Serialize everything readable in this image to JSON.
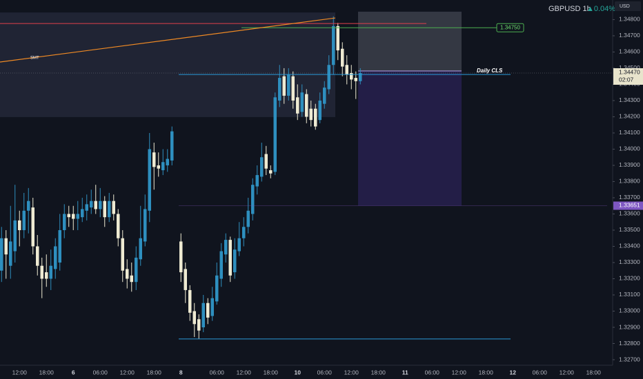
{
  "chart_data": {
    "type": "candlestick",
    "symbol": "GBPUSD",
    "interval": "1h",
    "change": "▲0.04%",
    "currency": "USD",
    "up_color": "#2e8fbf",
    "down_color": "#eeead2",
    "ylim": [
      1.32666,
      1.34921
    ],
    "yticks": [
      {
        "value": 1.327,
        "label": "1.32700"
      },
      {
        "value": 1.328,
        "label": "1.32800"
      },
      {
        "value": 1.329,
        "label": "1.32900"
      },
      {
        "value": 1.33,
        "label": "1.33000"
      },
      {
        "value": 1.331,
        "label": "1.33100"
      },
      {
        "value": 1.332,
        "label": "1.33200"
      },
      {
        "value": 1.333,
        "label": "1.33300"
      },
      {
        "value": 1.334,
        "label": "1.33400"
      },
      {
        "value": 1.335,
        "label": "1.33500"
      },
      {
        "value": 1.336,
        "label": "1.33600"
      },
      {
        "value": 1.337,
        "label": "1.33700"
      },
      {
        "value": 1.338,
        "label": "1.33800"
      },
      {
        "value": 1.339,
        "label": "1.33900"
      },
      {
        "value": 1.34,
        "label": "1.34000"
      },
      {
        "value": 1.341,
        "label": "1.34100"
      },
      {
        "value": 1.342,
        "label": "1.34200"
      },
      {
        "value": 1.343,
        "label": "1.34300"
      },
      {
        "value": 1.344,
        "label": "1.34400"
      },
      {
        "value": 1.345,
        "label": "1.34500"
      },
      {
        "value": 1.346,
        "label": "1.34600"
      },
      {
        "value": 1.347,
        "label": "1.34700"
      },
      {
        "value": 1.348,
        "label": "1.34800"
      }
    ],
    "categories": [
      null,
      null,
      null,
      null,
      "12:00",
      null,
      null,
      null,
      null,
      null,
      "18:00",
      null,
      null,
      null,
      null,
      null,
      "6",
      null,
      null,
      null,
      null,
      null,
      "06:00",
      null,
      null,
      null,
      null,
      null,
      "12:00",
      null,
      null,
      null,
      null,
      null,
      "18:00",
      null,
      null,
      null,
      null,
      null,
      "8",
      null,
      null,
      null,
      null,
      null,
      null,
      null,
      "06:00",
      null,
      null,
      null,
      null,
      null,
      "12:00",
      null,
      null,
      null,
      null,
      null,
      "18:00",
      null,
      null,
      null,
      null,
      null,
      "10",
      null,
      null,
      null,
      null,
      null,
      "06:00",
      null,
      null,
      null,
      null,
      null,
      "12:00",
      null,
      null,
      null,
      null,
      null,
      "18:00",
      null,
      null,
      null,
      null,
      null,
      "11",
      null,
      null,
      null,
      null,
      null,
      "06:00",
      null,
      null,
      null,
      null,
      null,
      "12:00",
      null,
      null,
      null,
      null,
      null,
      "18:00",
      null,
      null,
      null,
      null,
      null,
      "12",
      null,
      null,
      null,
      null,
      null,
      "06:00",
      null,
      null,
      null,
      null,
      null,
      "12:00",
      null,
      null,
      null,
      null,
      null,
      "18:00",
      null,
      null,
      null
    ],
    "open": [
      1.3325,
      1.3345,
      1.3328,
      1.3337,
      1.3356,
      1.335,
      1.3362,
      1.3364,
      1.334,
      1.3328,
      1.3324,
      1.332,
      1.3326,
      1.333,
      1.335,
      1.336,
      1.336,
      1.3357,
      1.3358,
      1.3362,
      1.3364,
      1.3368,
      1.3363,
      1.3368,
      1.3358,
      1.3368,
      1.336,
      1.3345,
      1.3326,
      1.3322,
      1.3318,
      1.3332,
      1.3343,
      1.3362,
      1.3398,
      1.339,
      1.3387,
      1.339,
      1.3393,
      null,
      1.3343,
      1.3326,
      1.3313,
      1.33,
      1.3295,
      1.329,
      1.3305,
      1.3297,
      1.3306,
      1.332,
      1.3335,
      1.3344,
      1.3324,
      1.3337,
      1.3345,
      1.3352,
      1.336,
      1.3377,
      1.3383,
      1.3397,
      1.3387,
      1.3386,
      1.343,
      1.3445,
      1.3433,
      1.3445,
      1.3432,
      1.3423,
      1.3434,
      1.3425,
      1.3425,
      1.3418,
      1.3428,
      1.3437,
      1.3452,
      1.3476,
      1.3462,
      1.3452,
      1.3447,
      1.3444,
      1.3442,
      null,
      null,
      null,
      null,
      null,
      null,
      null,
      null,
      null,
      null,
      null,
      null,
      null,
      null,
      null,
      null,
      null,
      null,
      null,
      null,
      null,
      null,
      null,
      null,
      null,
      null,
      null,
      null,
      null,
      null,
      null,
      null,
      null,
      null,
      null,
      null,
      null,
      null,
      null,
      null,
      null,
      null,
      null,
      null,
      null,
      null,
      null,
      null,
      null,
      null,
      null,
      null,
      null,
      null,
      null
    ],
    "high": [
      1.3352,
      1.335,
      1.3365,
      1.3378,
      1.3362,
      1.3373,
      1.3376,
      1.337,
      1.3347,
      1.3333,
      1.3335,
      1.3338,
      1.3345,
      1.336,
      1.3366,
      1.3365,
      1.3365,
      1.3368,
      1.337,
      1.3372,
      1.3375,
      1.3378,
      1.3376,
      1.3371,
      1.3373,
      1.3372,
      1.3363,
      1.335,
      1.3332,
      1.333,
      1.334,
      1.3365,
      1.3372,
      1.341,
      1.3404,
      1.3398,
      1.34,
      1.34,
      1.3414,
      null,
      1.3348,
      1.333,
      1.3316,
      1.3305,
      1.3298,
      1.331,
      1.3308,
      1.3315,
      1.333,
      1.3342,
      1.3348,
      1.3346,
      1.3345,
      1.3355,
      1.3358,
      1.337,
      1.3382,
      1.339,
      1.3404,
      1.3402,
      1.339,
      1.3435,
      1.3452,
      1.345,
      1.345,
      1.3448,
      1.344,
      1.344,
      1.3437,
      1.343,
      1.3428,
      1.3435,
      1.3442,
      1.3458,
      1.3482,
      1.3478,
      1.3466,
      1.3458,
      1.3452,
      1.3448,
      1.345,
      null,
      null,
      null,
      null,
      null,
      null,
      null,
      null,
      null,
      null,
      null,
      null,
      null,
      null,
      null,
      null,
      null,
      null,
      null,
      null,
      null,
      null,
      null,
      null,
      null,
      null,
      null,
      null,
      null,
      null,
      null,
      null,
      null,
      null,
      null,
      null,
      null,
      null,
      null,
      null,
      null,
      null,
      null,
      null,
      null,
      null,
      null,
      null,
      null,
      null,
      null,
      null,
      null,
      null,
      null
    ],
    "low": [
      1.3318,
      1.332,
      1.332,
      1.333,
      1.334,
      1.3345,
      1.3348,
      1.3335,
      1.3322,
      1.3308,
      1.3315,
      1.3313,
      1.332,
      1.3325,
      1.3345,
      1.3352,
      1.335,
      1.335,
      1.3355,
      1.3356,
      1.336,
      1.336,
      1.3358,
      1.3352,
      1.3355,
      1.3356,
      1.334,
      1.3318,
      1.3314,
      1.3312,
      1.3313,
      1.3328,
      1.334,
      1.3355,
      1.3375,
      1.3383,
      1.3384,
      1.3386,
      1.339,
      null,
      1.3318,
      1.3305,
      1.3294,
      1.3284,
      1.3283,
      1.3287,
      1.3292,
      1.3294,
      1.3304,
      1.3315,
      1.333,
      1.3318,
      1.332,
      1.3334,
      1.334,
      1.3348,
      1.3356,
      1.3372,
      1.338,
      1.3384,
      1.3382,
      1.3384,
      1.3426,
      1.3428,
      1.343,
      1.3425,
      1.3418,
      1.342,
      1.3416,
      1.3414,
      1.3412,
      1.3416,
      1.3425,
      1.3434,
      1.3446,
      1.3455,
      1.3445,
      1.344,
      1.3437,
      1.3431,
      1.344,
      null,
      null,
      null,
      null,
      null,
      null,
      null,
      null,
      null,
      null,
      null,
      null,
      null,
      null,
      null,
      null,
      null,
      null,
      null,
      null,
      null,
      null,
      null,
      null,
      null,
      null,
      null,
      null,
      null,
      null,
      null,
      null,
      null,
      null,
      null,
      null,
      null,
      null,
      null,
      null,
      null,
      null,
      null,
      null,
      null,
      null,
      null,
      null,
      null,
      null,
      null,
      null,
      null,
      null,
      null
    ],
    "close": [
      1.3345,
      1.3335,
      1.3343,
      1.3356,
      1.335,
      1.3362,
      1.3368,
      1.334,
      1.3328,
      1.332,
      1.332,
      1.3328,
      1.334,
      1.335,
      1.336,
      1.3358,
      1.3357,
      1.336,
      1.3363,
      1.3366,
      1.3368,
      1.3363,
      1.3368,
      1.3358,
      1.3368,
      1.336,
      1.3345,
      1.3325,
      1.332,
      1.3318,
      1.3333,
      1.3345,
      1.3363,
      1.34,
      1.3389,
      1.3388,
      1.3392,
      1.3394,
      1.3411,
      null,
      1.3324,
      1.3313,
      1.3299,
      1.3292,
      1.3288,
      1.3305,
      1.3296,
      1.3308,
      1.3322,
      1.3337,
      1.3344,
      1.3322,
      1.3338,
      1.3345,
      1.3352,
      1.3362,
      1.3378,
      1.3384,
      1.3395,
      1.3388,
      1.3385,
      1.3432,
      1.3444,
      1.3433,
      1.3446,
      1.343,
      1.3422,
      1.3435,
      1.342,
      1.3418,
      1.3414,
      1.343,
      1.3438,
      1.3452,
      1.3476,
      1.3461,
      1.3451,
      1.3446,
      1.3443,
      1.3442,
      1.3447,
      null,
      null,
      null,
      null,
      null,
      null,
      null,
      null,
      null,
      null,
      null,
      null,
      null,
      null,
      null,
      null,
      null,
      null,
      null,
      null,
      null,
      null,
      null,
      null,
      null,
      null,
      null,
      null,
      null,
      null,
      null,
      null,
      null,
      null,
      null,
      null,
      null,
      null,
      null,
      null,
      null,
      null,
      null,
      null,
      null,
      null,
      null,
      null,
      null,
      null,
      null,
      null,
      null,
      null,
      null
    ],
    "last_price": {
      "value": 1.3447,
      "label": "1.34470"
    },
    "countdown": "02:07",
    "zone": {
      "values": [
        1.34844,
        1.34198
      ]
    },
    "trendline": {
      "name": "SMT",
      "color": "#f08a24",
      "values": [
        1.34538,
        1.3481
      ]
    },
    "position": {
      "values": [
        1.34849,
        1.34483,
        1.33651
      ]
    },
    "levels": [
      {
        "name": "Daily CLS",
        "value": 1.34461,
        "color": "#2a9bd8"
      },
      {
        "value": 1.3475,
        "label": "1.34750",
        "color": "#4caf50"
      },
      {
        "value": 1.34776,
        "color": "#e0404a"
      },
      {
        "value": 1.32828,
        "color": "#2a9bd8"
      },
      {
        "value": 1.33651,
        "label": "1.33651",
        "color": "#7e57c2"
      }
    ]
  }
}
